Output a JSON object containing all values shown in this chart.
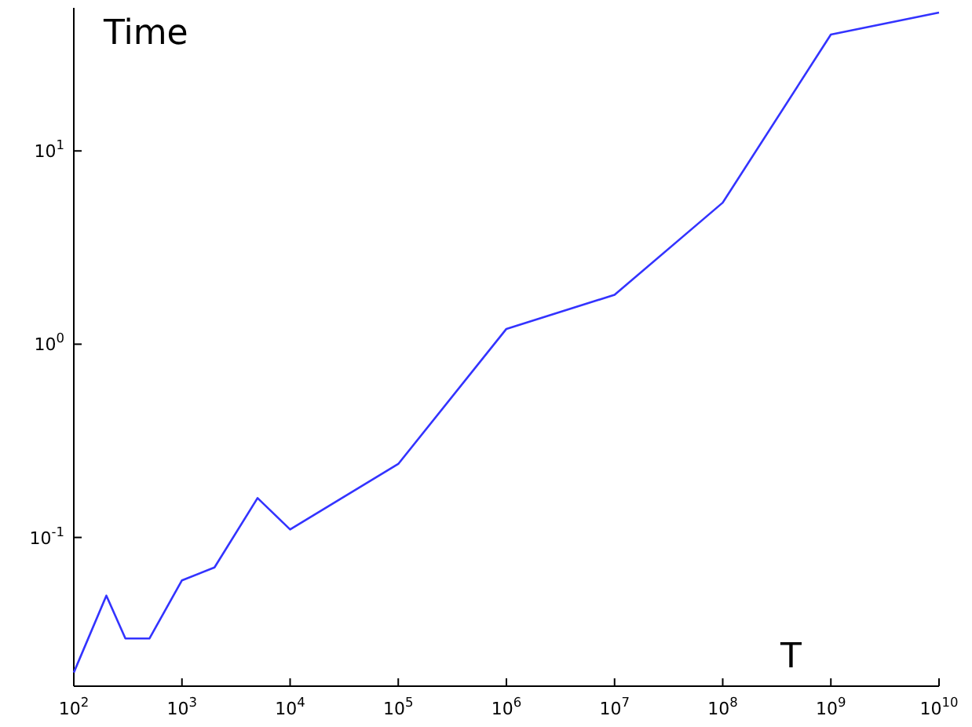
{
  "chart_data": {
    "type": "line",
    "xlabel": "T",
    "ylabel": "Time",
    "log": "xy",
    "x": [
      100,
      200,
      300,
      500,
      1000,
      2000,
      5000,
      10000,
      100000,
      1000000,
      10000000,
      100000000,
      1000000000,
      10000000000
    ],
    "series": [
      {
        "color": "#3333ff",
        "values": [
          0.02,
          0.05,
          0.03,
          0.03,
          0.06,
          0.07,
          0.16,
          0.11,
          0.24,
          1.2,
          1.8,
          5.4,
          40,
          52
        ]
      }
    ],
    "xlim": [
      100,
      10000000000
    ],
    "ylim": [
      0.017,
      55
    ],
    "xticks": [
      {
        "value": 100,
        "label": "10$^{2}$"
      },
      {
        "value": 1000,
        "label": "10$^{3}$"
      },
      {
        "value": 10000,
        "label": "10$^{4}$"
      },
      {
        "value": 100000,
        "label": "10$^{5}$"
      },
      {
        "value": 1000000,
        "label": "10$^{6}$"
      },
      {
        "value": 10000000,
        "label": "10$^{7}$"
      },
      {
        "value": 100000000,
        "label": "10$^{8}$"
      },
      {
        "value": 1000000000,
        "label": "10$^{9}$"
      },
      {
        "value": 10000000000,
        "label": "10$^{10}$"
      }
    ],
    "yticks": [
      {
        "value": 0.1,
        "label": "10$^{-1}$"
      },
      {
        "value": 1,
        "label": "10$^{0}$"
      },
      {
        "value": 10,
        "label": "10$^{1}$"
      }
    ],
    "grid": false,
    "marker": "none",
    "line_style": "solid"
  }
}
